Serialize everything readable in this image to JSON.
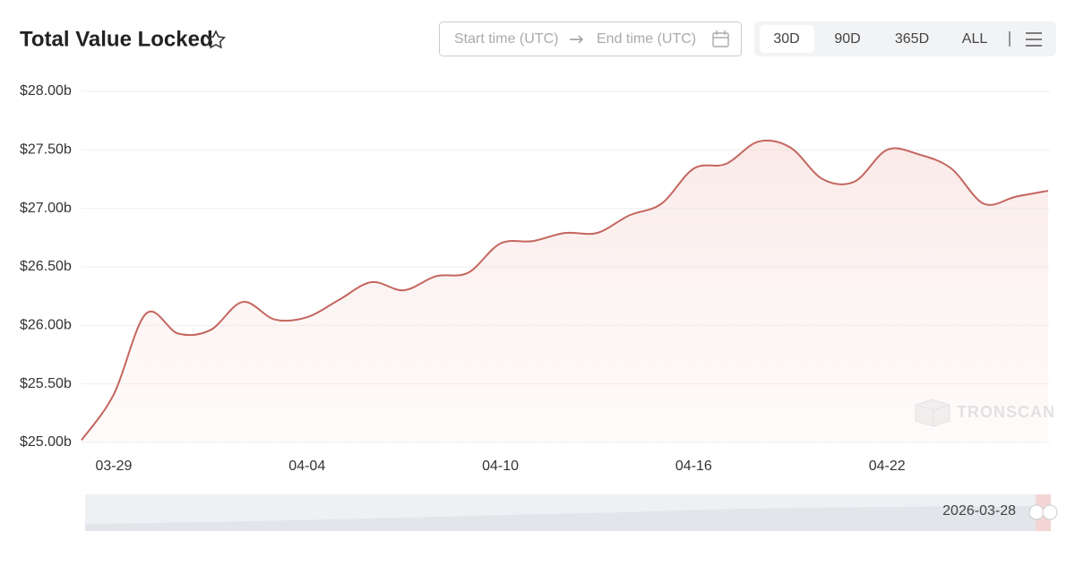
{
  "chart_data": {
    "type": "line",
    "title": "Total Value Locked",
    "categories": [
      null,
      "03-29",
      null,
      null,
      null,
      null,
      null,
      "04-04",
      null,
      null,
      null,
      null,
      null,
      "04-10",
      null,
      null,
      null,
      null,
      null,
      "04-16",
      null,
      null,
      null,
      null,
      null,
      "04-22",
      null,
      null,
      null,
      null,
      null
    ],
    "values": [
      25.02,
      25.41,
      26.1,
      25.93,
      25.96,
      26.2,
      26.05,
      26.07,
      26.22,
      26.37,
      26.3,
      26.42,
      26.45,
      26.7,
      26.72,
      26.79,
      26.79,
      26.94,
      27.04,
      27.34,
      27.38,
      27.57,
      27.52,
      27.25,
      27.23,
      27.5,
      27.46,
      27.34,
      27.04,
      27.1,
      27.15
    ],
    "color": "#c4665f",
    "ylim": [
      25,
      28
    ],
    "yticks": [
      {
        "value": 25,
        "label": "$25.00b"
      },
      {
        "value": 25.5,
        "label": "$25.50b"
      },
      {
        "value": 26,
        "label": "$26.00b"
      },
      {
        "value": 26.5,
        "label": "$26.50b"
      },
      {
        "value": 27,
        "label": "$27.00b"
      },
      {
        "value": 27.5,
        "label": "$27.50b"
      },
      {
        "value": 28,
        "label": "$28.00b"
      }
    ],
    "grid": true
  },
  "controls": {
    "start_placeholder": "Start time (UTC)",
    "end_placeholder": "End time (UTC)",
    "ranges": [
      "30D",
      "90D",
      "365D",
      "ALL"
    ],
    "active_range": 0
  },
  "watermark": "TRONSCAN",
  "slider": {
    "label": "2026-03-28"
  }
}
